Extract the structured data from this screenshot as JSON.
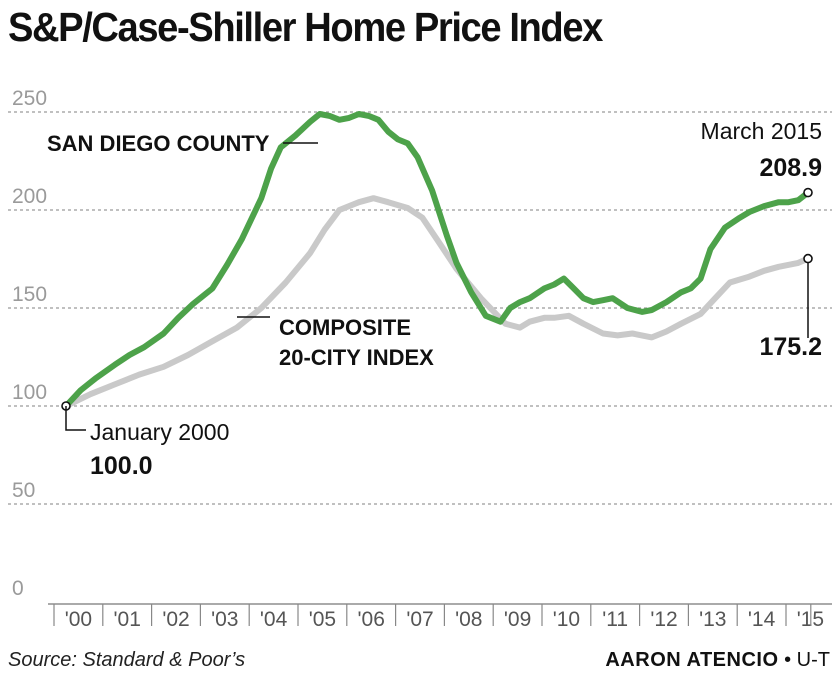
{
  "chart_data": {
    "type": "line",
    "title": "S&P/Case-Shiller Home Price Index",
    "ylim": [
      0,
      250
    ],
    "yticks": [
      0,
      50,
      100,
      150,
      200,
      250
    ],
    "xticks": [
      "'00",
      "'01",
      "'02",
      "'03",
      "'04",
      "'05",
      "'06",
      "'07",
      "'08",
      "'09",
      "'10",
      "'11",
      "'12",
      "'13",
      "'14",
      "'15"
    ],
    "xlim": [
      2000.0,
      2015.2
    ],
    "grid": true,
    "series": [
      {
        "name": "COMPOSITE 20-CITY INDEX",
        "color": "#c9c9c9",
        "x": [
          2000.0,
          2000.5,
          2001.0,
          2001.5,
          2002.0,
          2002.5,
          2003.0,
          2003.5,
          2004.0,
          2004.5,
          2005.0,
          2005.3,
          2005.6,
          2006.0,
          2006.3,
          2006.6,
          2007.0,
          2007.3,
          2007.6,
          2008.0,
          2008.5,
          2009.0,
          2009.3,
          2009.5,
          2009.8,
          2010.0,
          2010.3,
          2010.6,
          2011.0,
          2011.3,
          2011.6,
          2012.0,
          2012.3,
          2012.6,
          2013.0,
          2013.3,
          2013.6,
          2014.0,
          2014.3,
          2014.6,
          2015.0,
          2015.2
        ],
        "values": [
          100,
          106,
          111,
          116,
          120,
          126,
          133,
          140,
          150,
          163,
          178,
          190,
          200,
          204,
          206,
          204,
          201,
          196,
          185,
          170,
          155,
          142,
          140,
          143,
          145,
          145,
          146,
          142,
          137,
          136,
          137,
          135,
          138,
          142,
          147,
          155,
          163,
          166,
          169,
          171,
          173,
          175.2
        ]
      },
      {
        "name": "SAN DIEGO COUNTY",
        "color": "#4da24a",
        "x": [
          2000.0,
          2000.3,
          2000.6,
          2001.0,
          2001.3,
          2001.6,
          2002.0,
          2002.3,
          2002.6,
          2003.0,
          2003.3,
          2003.6,
          2004.0,
          2004.2,
          2004.4,
          2004.7,
          2005.0,
          2005.2,
          2005.4,
          2005.6,
          2005.8,
          2006.0,
          2006.2,
          2006.4,
          2006.6,
          2006.8,
          2007.0,
          2007.2,
          2007.5,
          2007.8,
          2008.0,
          2008.3,
          2008.6,
          2008.9,
          2009.1,
          2009.3,
          2009.5,
          2009.8,
          2010.0,
          2010.2,
          2010.4,
          2010.6,
          2010.8,
          2011.0,
          2011.2,
          2011.5,
          2011.8,
          2012.0,
          2012.3,
          2012.6,
          2012.8,
          2013.0,
          2013.2,
          2013.5,
          2013.8,
          2014.0,
          2014.3,
          2014.6,
          2014.8,
          2015.0,
          2015.2
        ],
        "values": [
          100,
          108,
          114,
          121,
          126,
          130,
          137,
          145,
          152,
          160,
          172,
          185,
          206,
          221,
          232,
          238,
          245,
          249,
          248,
          246,
          247,
          249,
          248,
          246,
          240,
          236,
          234,
          227,
          210,
          187,
          173,
          158,
          146,
          143,
          150,
          153,
          155,
          160,
          162,
          165,
          160,
          155,
          153,
          154,
          155,
          150,
          148,
          149,
          153,
          158,
          160,
          165,
          180,
          191,
          196,
          199,
          202,
          204,
          204,
          205,
          208.9
        ]
      }
    ],
    "annotations": {
      "san_diego_label": "SAN DIEGO COUNTY",
      "composite_label_1": "COMPOSITE",
      "composite_label_2": "20-CITY INDEX",
      "start_label": "January 2000",
      "start_value": "100.0",
      "end_label": "March 2015",
      "end_value_san_diego": "208.9",
      "end_value_composite": "175.2"
    }
  },
  "footer": {
    "source": "Source: Standard & Poor’s",
    "credit_name": "AARON ATENCIO",
    "credit_separator": "•",
    "credit_org": "U-T"
  }
}
